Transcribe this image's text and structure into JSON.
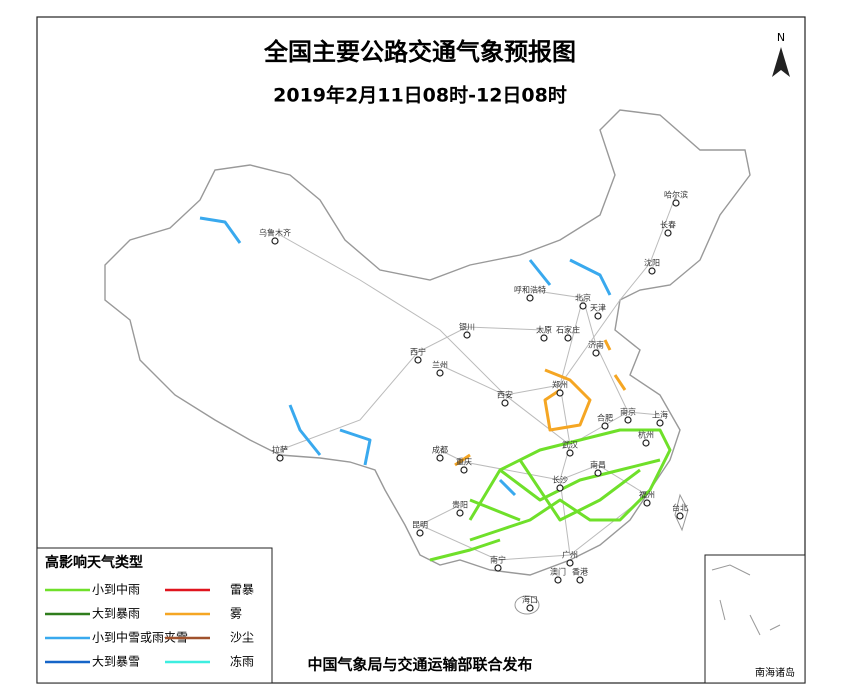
{
  "header": {
    "title": "全国主要公路交通气象预报图",
    "subtitle": "2019年2月11日08时-12日08时",
    "north": "N"
  },
  "legend": {
    "title": "高影响天气类型",
    "items": [
      {
        "label": "小到中雨",
        "color": "#6fe02a"
      },
      {
        "label": "大到暴雨",
        "color": "#2f7d1c"
      },
      {
        "label": "小到中雪或雨夹雪",
        "color": "#39a9ee"
      },
      {
        "label": "大到暴雪",
        "color": "#1565c8"
      },
      {
        "label": "雷暴",
        "color": "#e0141e"
      },
      {
        "label": "雾",
        "color": "#f5a623"
      },
      {
        "label": "沙尘",
        "color": "#a0522d"
      },
      {
        "label": "冻雨",
        "color": "#3deee0"
      }
    ]
  },
  "cities": [
    "乌鲁木齐",
    "哈尔滨",
    "长春",
    "沈阳",
    "呼和浩特",
    "北京",
    "天津",
    "银川",
    "太原",
    "石家庄",
    "济南",
    "西宁",
    "兰州",
    "郑州",
    "西安",
    "合肥",
    "南京",
    "上海",
    "杭州",
    "成都",
    "武汉",
    "重庆",
    "长沙",
    "南昌",
    "拉萨",
    "福州",
    "台北",
    "贵阳",
    "昆明",
    "南宁",
    "广州",
    "澳门",
    "香港",
    "海口"
  ],
  "inset": {
    "label": "南海诸岛"
  },
  "footer": "中国气象局与交通运输部联合发布"
}
